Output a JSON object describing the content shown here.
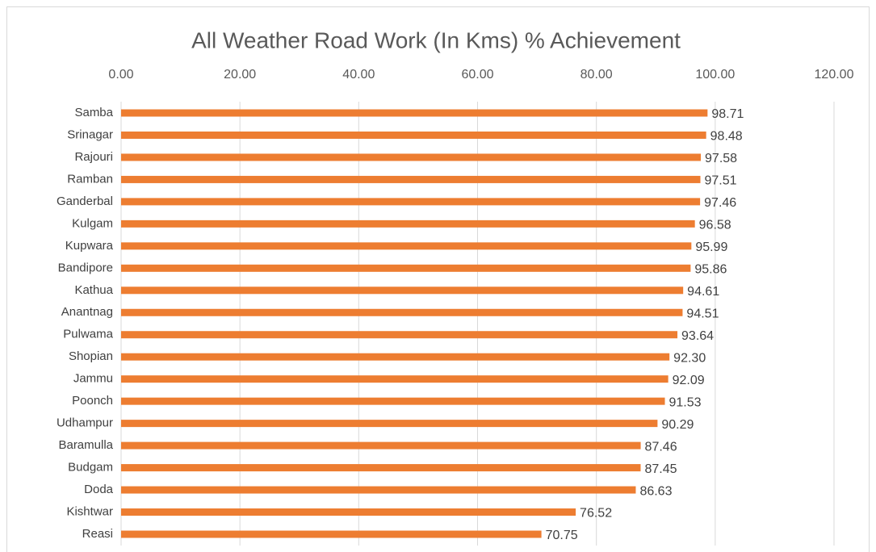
{
  "chart_data": {
    "type": "bar",
    "orientation": "horizontal",
    "title": "All Weather Road Work (In Kms) % Achievement",
    "categories": [
      "Samba",
      "Srinagar",
      "Rajouri",
      "Ramban",
      "Ganderbal",
      "Kulgam",
      "Kupwara",
      "Bandipore",
      "Kathua",
      "Anantnag",
      "Pulwama",
      "Shopian",
      "Jammu",
      "Poonch",
      "Udhampur",
      "Baramulla",
      "Budgam",
      "Doda",
      "Kishtwar",
      "Reasi"
    ],
    "values": [
      98.71,
      98.48,
      97.58,
      97.51,
      97.46,
      96.58,
      95.99,
      95.86,
      94.61,
      94.51,
      93.64,
      92.3,
      92.09,
      91.53,
      90.29,
      87.46,
      87.45,
      86.63,
      76.52,
      70.75
    ],
    "value_labels": [
      "98.71",
      "98.48",
      "97.58",
      "97.51",
      "97.46",
      "96.58",
      "95.99",
      "95.86",
      "94.61",
      "94.51",
      "93.64",
      "92.30",
      "92.09",
      "91.53",
      "90.29",
      "87.46",
      "87.45",
      "86.63",
      "76.52",
      "70.75"
    ],
    "color": "#ed7d31",
    "xlim": [
      0,
      120
    ],
    "xticks": [
      {
        "value": 0,
        "label": "0.00"
      },
      {
        "value": 20,
        "label": "20.00"
      },
      {
        "value": 40,
        "label": "40.00"
      },
      {
        "value": 60,
        "label": "60.00"
      },
      {
        "value": 80,
        "label": "80.00"
      },
      {
        "value": 100,
        "label": "100.00"
      },
      {
        "value": 120,
        "label": "120.00"
      }
    ],
    "grid": true
  }
}
